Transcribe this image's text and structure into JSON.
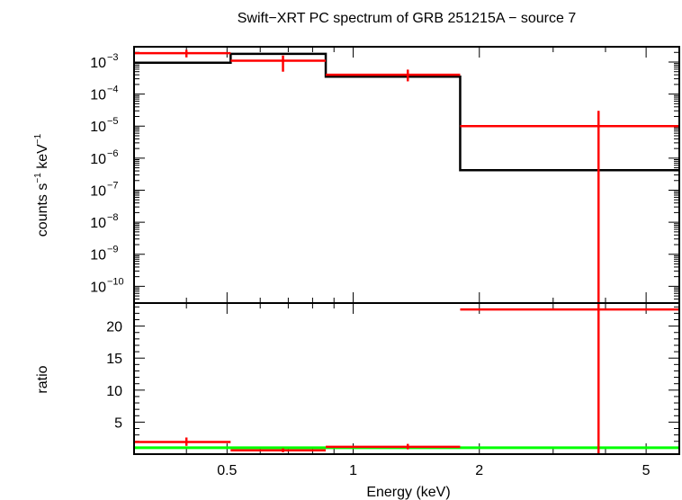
{
  "chart_data": {
    "type": "line",
    "title": "Swift−XRT PC spectrum of GRB 251215A − source 7",
    "xlabel": "Energy (keV)",
    "x_scale": "log",
    "xlim": [
      0.3,
      6.0
    ],
    "x_ticks": [
      {
        "value": 0.5,
        "label": "0.5"
      },
      {
        "value": 1,
        "label": "1"
      },
      {
        "value": 2,
        "label": "2"
      },
      {
        "value": 5,
        "label": "5"
      }
    ],
    "panels": [
      {
        "name": "spectrum",
        "ylabel_parts": [
          "counts s",
          "−1",
          " keV",
          "−1"
        ],
        "y_scale": "log",
        "ylim": [
          3e-11,
          0.003
        ],
        "y_ticks": [
          {
            "value": 0.001,
            "base": "10",
            "exp": "−3"
          },
          {
            "value": 0.0001,
            "base": "10",
            "exp": "−4"
          },
          {
            "value": 1e-05,
            "base": "10",
            "exp": "−5"
          },
          {
            "value": 1e-06,
            "base": "10",
            "exp": "−6"
          },
          {
            "value": 1e-07,
            "base": "10",
            "exp": "−7"
          },
          {
            "value": 1e-08,
            "base": "10",
            "exp": "−8"
          },
          {
            "value": 1e-09,
            "base": "10",
            "exp": "−9"
          },
          {
            "value": 1e-10,
            "base": "10",
            "exp": "−10"
          }
        ],
        "series": [
          {
            "style": "step",
            "color": "#000000",
            "bins": [
              {
                "x0": 0.3,
                "x1": 0.51,
                "y": 0.00095
              },
              {
                "x0": 0.51,
                "x1": 0.86,
                "y": 0.0018
              },
              {
                "x0": 0.86,
                "x1": 1.8,
                "y": 0.00035
              },
              {
                "x0": 1.8,
                "x1": 6.0,
                "y": 4.2e-07
              }
            ]
          },
          {
            "style": "errorbar",
            "color": "#ff0000",
            "points": [
              {
                "x": 0.4,
                "x0": 0.3,
                "x1": 0.51,
                "y": 0.0019,
                "ylo": 0.0014,
                "yhi": 0.0024
              },
              {
                "x": 0.68,
                "x0": 0.51,
                "x1": 0.86,
                "y": 0.0011,
                "ylo": 0.0005,
                "yhi": 0.0016
              },
              {
                "x": 1.35,
                "x0": 0.86,
                "x1": 1.8,
                "y": 0.0004,
                "ylo": 0.00025,
                "yhi": 0.00058
              },
              {
                "x": 3.85,
                "x0": 1.8,
                "x1": 6.0,
                "y": 1e-05,
                "ylo": 3e-11,
                "yhi": 3e-05
              }
            ]
          }
        ]
      },
      {
        "name": "ratio",
        "ylabel": "ratio",
        "y_scale": "linear",
        "ylim": [
          0,
          23.6
        ],
        "y_ticks": [
          {
            "value": 5,
            "label": "5"
          },
          {
            "value": 10,
            "label": "10"
          },
          {
            "value": 15,
            "label": "15"
          },
          {
            "value": 20,
            "label": "20"
          }
        ],
        "reference_line": {
          "y": 1,
          "color": "#00ff00"
        },
        "series": [
          {
            "style": "errorbar",
            "color": "#ff0000",
            "points": [
              {
                "x": 0.4,
                "x0": 0.3,
                "x1": 0.51,
                "y": 1.9,
                "ylo": 1.3,
                "yhi": 2.6
              },
              {
                "x": 0.68,
                "x0": 0.51,
                "x1": 0.86,
                "y": 0.6,
                "ylo": 0.3,
                "yhi": 0.9
              },
              {
                "x": 1.35,
                "x0": 0.86,
                "x1": 1.8,
                "y": 1.15,
                "ylo": 0.75,
                "yhi": 1.6
              },
              {
                "x": 3.85,
                "x0": 1.8,
                "x1": 6.0,
                "y": 22.6,
                "ylo": 0,
                "yhi": 23.6
              }
            ]
          }
        ]
      }
    ]
  }
}
